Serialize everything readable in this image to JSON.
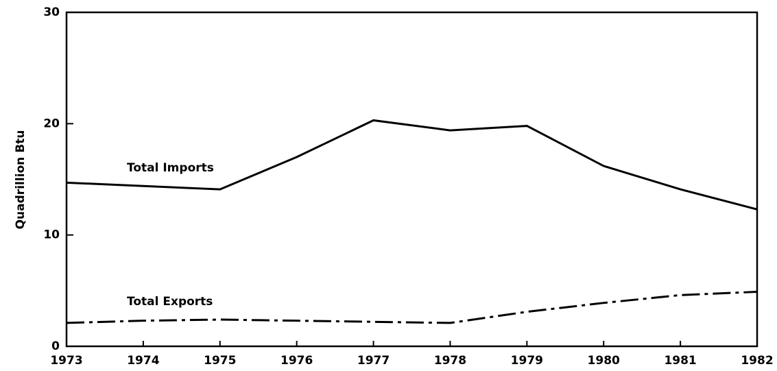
{
  "chart_data": {
    "type": "line",
    "y_label": "Quadrillion Btu",
    "x": [
      1973,
      1974,
      1975,
      1976,
      1977,
      1978,
      1979,
      1980,
      1981,
      1982
    ],
    "series": [
      {
        "name": "Total Imports",
        "color": "#000000",
        "style": "solid",
        "values": [
          14.7,
          14.4,
          14.1,
          17.0,
          20.3,
          19.4,
          19.8,
          16.2,
          14.1,
          12.3
        ]
      },
      {
        "name": "Total Exports",
        "color": "#000000",
        "style": "dash-dot",
        "values": [
          2.1,
          2.3,
          2.4,
          2.3,
          2.2,
          2.1,
          3.1,
          3.9,
          4.6,
          4.9
        ]
      }
    ],
    "xlim": [
      1973,
      1982
    ],
    "xticks": [
      1973,
      1974,
      1975,
      1976,
      1977,
      1978,
      1979,
      1980,
      1981,
      1982
    ],
    "ylim": [
      0,
      30
    ],
    "yticks": [
      0,
      10,
      20,
      30
    ],
    "grid": false
  }
}
